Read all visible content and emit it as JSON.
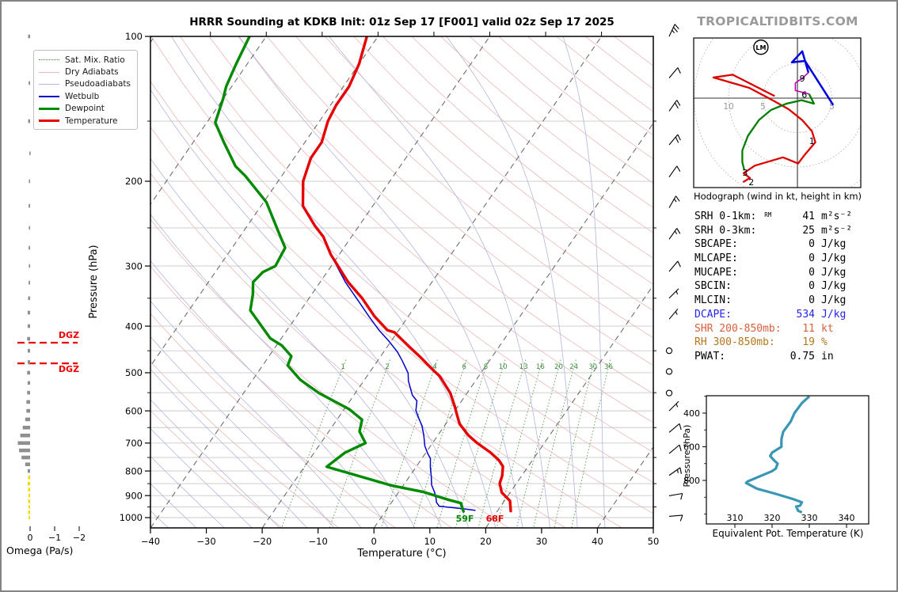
{
  "header": {
    "watermark": "TROPICALTIDBITS.COM"
  },
  "skewt": {
    "title": "HRRR Sounding at KDKB Init: 01z Sep 17 [F001] valid 02z Sep 17 2025",
    "xlabel": "Temperature (°C)",
    "ylabel": "Pressure (hPa)",
    "x_ticks": [
      -40,
      -30,
      -20,
      -10,
      0,
      10,
      20,
      30,
      40,
      50
    ],
    "p_ticks": [
      100,
      200,
      300,
      400,
      500,
      600,
      700,
      800,
      900,
      1000
    ],
    "mix_ratio_labels": [
      1,
      2,
      4,
      6,
      8,
      10,
      13,
      16,
      20,
      24,
      30,
      36
    ],
    "legend": [
      {
        "label": "Sat. Mix. Ratio",
        "swatch": "mixratio"
      },
      {
        "label": "Dry Adiabats",
        "swatch": "dryadiabat"
      },
      {
        "label": "Pseudoadiabats",
        "swatch": "pseudoadiabat"
      },
      {
        "label": "Wetbulb",
        "swatch": "wetbulb"
      },
      {
        "label": "Dewpoint",
        "swatch": "dewpoint"
      },
      {
        "label": "Temperature",
        "swatch": "temperature"
      }
    ],
    "surface": {
      "dewpoint_f": "59F",
      "temperature_f": "68F"
    }
  },
  "omega": {
    "xlabel": "Omega (Pa/s)",
    "ticks": [
      0,
      -1,
      -2
    ],
    "dgz_label": "DGZ"
  },
  "hodograph": {
    "caption": "Hodograph (wind in kt, height in km)",
    "storm_motion": {
      "label": "LM",
      "u": -5.3,
      "v": 7.4
    },
    "ring_interval_kt": 5,
    "ring_axis_labels": [
      {
        "text": "10",
        "u": -10,
        "v": 0
      },
      {
        "text": "5",
        "u": -5,
        "v": 0
      },
      {
        "text": "5",
        "u": 5,
        "v": 0
      }
    ],
    "height_markers": [
      {
        "label": "1",
        "u": 2.1,
        "v": -6.2
      },
      {
        "label": "2",
        "u": -6.7,
        "v": -12.2
      },
      {
        "label": "3",
        "u": -7.6,
        "v": -10.8
      },
      {
        "label": "6",
        "u": 1.0,
        "v": 0.5
      },
      {
        "label": "9",
        "u": 0.7,
        "v": 2.9
      }
    ]
  },
  "stats": {
    "rows": [
      {
        "label": "SRH 0-1km:",
        "tag": "RM",
        "value": "41",
        "unit": "m²s⁻²",
        "color": "#000000"
      },
      {
        "label": "SRH 0-3km:",
        "tag": "",
        "value": "25",
        "unit": "m²s⁻²",
        "color": "#000000"
      },
      {
        "label": "SBCAPE:",
        "tag": "",
        "value": "0",
        "unit": "J/kg",
        "color": "#000000"
      },
      {
        "label": "MLCAPE:",
        "tag": "",
        "value": "0",
        "unit": "J/kg",
        "color": "#000000"
      },
      {
        "label": "MUCAPE:",
        "tag": "",
        "value": "0",
        "unit": "J/kg",
        "color": "#000000"
      },
      {
        "label": "SBCIN:",
        "tag": "",
        "value": "0",
        "unit": "J/kg",
        "color": "#000000"
      },
      {
        "label": "MLCIN:",
        "tag": "",
        "value": "0",
        "unit": "J/kg",
        "color": "#000000"
      },
      {
        "label": "DCAPE:",
        "tag": "",
        "value": "534",
        "unit": "J/kg",
        "color": "#2424e6"
      },
      {
        "label": "SHR 200-850mb:",
        "tag": "",
        "value": "11",
        "unit": "kt",
        "color": "#d9603b"
      },
      {
        "label": "RH 300-850mb:",
        "tag": "",
        "value": "19",
        "unit": "%",
        "color": "#b5761d"
      },
      {
        "label": "PWAT:",
        "tag": "",
        "value": "0.75",
        "unit": "in",
        "color": "#000000"
      }
    ]
  },
  "theta_e": {
    "xlabel": "Equivalent Pot. Temperature (K)",
    "ylabel": "Pressure (hPa)",
    "x_ticks": [
      310,
      320,
      330,
      340
    ],
    "p_ticks": [
      400,
      600,
      800
    ]
  },
  "colors": {
    "temperature": "#e60000",
    "dewpoint": "#008a00",
    "wetbulb": "#0000cc",
    "dry_adiabat": "#e9b8b8",
    "pseudoadiabat": "#b2b6dc",
    "mix_ratio": "#3c8c3c",
    "isotherm": "#4a4a4a",
    "gridline": "#c9c9c9",
    "dgz": "#ee0000",
    "omega_gray": "#8f8f8f",
    "omega_yellow": "#f2dc00",
    "hodo_0_3": "#dd0000",
    "hodo_3_6": "#007f00",
    "hodo_6_9": "#bb00bb",
    "hodo_9_12": "#0000dd",
    "theta_e_line": "#3996b4",
    "ring": "#aaaaaa",
    "watermark": "#9a9a9a"
  },
  "chart_data": {
    "type": "skewt_sounding",
    "layout_hints": {
      "pressure_range_hpa": [
        100,
        1050
      ],
      "temp_range_c": [
        -40,
        50
      ],
      "pressure_scale": "log",
      "skew_deg": 45,
      "grid": "50hPa horizontal",
      "isotherm_step_c": 20,
      "dry_adiabat_step_c": 10,
      "pseudoadiabat_step_c": 5,
      "legend_position": "upper left"
    },
    "temperature_c": [
      [
        100,
        -62
      ],
      [
        114,
        -60
      ],
      [
        127,
        -59
      ],
      [
        139,
        -59
      ],
      [
        150,
        -58.5
      ],
      [
        166,
        -57
      ],
      [
        179,
        -57
      ],
      [
        200,
        -55.5
      ],
      [
        225,
        -52.5
      ],
      [
        247,
        -48
      ],
      [
        261,
        -45
      ],
      [
        284,
        -41.5
      ],
      [
        324,
        -35
      ],
      [
        350,
        -30.5
      ],
      [
        382,
        -26
      ],
      [
        408,
        -22
      ],
      [
        412,
        -20.5
      ],
      [
        442,
        -16
      ],
      [
        466,
        -12.5
      ],
      [
        493,
        -9
      ],
      [
        508,
        -7
      ],
      [
        551,
        -3
      ],
      [
        588,
        -0.5
      ],
      [
        605,
        0.5
      ],
      [
        639,
        2.5
      ],
      [
        675,
        5.5
      ],
      [
        700,
        8
      ],
      [
        732,
        11.5
      ],
      [
        760,
        14
      ],
      [
        783,
        15.5
      ],
      [
        818,
        16.5
      ],
      [
        849,
        17
      ],
      [
        887,
        18.5
      ],
      [
        923,
        21
      ],
      [
        969,
        22.4
      ]
    ],
    "dewpoint_c": [
      [
        100,
        -83
      ],
      [
        114,
        -82
      ],
      [
        127,
        -81
      ],
      [
        135,
        -80
      ],
      [
        151,
        -78.5
      ],
      [
        166,
        -74.5
      ],
      [
        186,
        -69.5
      ],
      [
        195,
        -66.5
      ],
      [
        221,
        -59.5
      ],
      [
        259,
        -53
      ],
      [
        275,
        -50.5
      ],
      [
        300,
        -50
      ],
      [
        309,
        -51.5
      ],
      [
        324,
        -52
      ],
      [
        344,
        -50.5
      ],
      [
        371,
        -49
      ],
      [
        389,
        -46.5
      ],
      [
        424,
        -42
      ],
      [
        439,
        -39
      ],
      [
        462,
        -36
      ],
      [
        483,
        -35.5
      ],
      [
        517,
        -31.5
      ],
      [
        551,
        -26.5
      ],
      [
        596,
        -19
      ],
      [
        626,
        -15.5
      ],
      [
        662,
        -14.5
      ],
      [
        700,
        -12
      ],
      [
        733,
        -14.5
      ],
      [
        784,
        -16
      ],
      [
        858,
        -2
      ],
      [
        885,
        4.5
      ],
      [
        919,
        10
      ],
      [
        933,
        12.5
      ],
      [
        971,
        14
      ]
    ],
    "wetbulb_c": [
      [
        284,
        -41.5
      ],
      [
        324,
        -35.5
      ],
      [
        350,
        -31.5
      ],
      [
        382,
        -27
      ],
      [
        408,
        -23.5
      ],
      [
        429,
        -20.5
      ],
      [
        453,
        -17.5
      ],
      [
        473,
        -15.5
      ],
      [
        501,
        -13
      ],
      [
        520,
        -12
      ],
      [
        557,
        -9.5
      ],
      [
        572,
        -8
      ],
      [
        599,
        -7
      ],
      [
        622,
        -5.5
      ],
      [
        645,
        -4
      ],
      [
        675,
        -2.5
      ],
      [
        710,
        -1
      ],
      [
        737,
        0.5
      ],
      [
        753,
        1.5
      ],
      [
        783,
        2.5
      ],
      [
        824,
        4
      ],
      [
        855,
        5
      ],
      [
        887,
        6.5
      ],
      [
        913,
        7.5
      ],
      [
        929,
        8
      ],
      [
        947,
        9
      ],
      [
        958,
        13.5
      ],
      [
        966,
        16
      ]
    ],
    "dgz_hpa": [
      433,
      478
    ],
    "omega_pa_s": [
      [
        100,
        0.08
      ],
      [
        125,
        0.06
      ],
      [
        150,
        0.08
      ],
      [
        175,
        0.03
      ],
      [
        200,
        0.05
      ],
      [
        225,
        0.06
      ],
      [
        250,
        0.05
      ],
      [
        275,
        0.06
      ],
      [
        300,
        0.05
      ],
      [
        325,
        0.06
      ],
      [
        350,
        0.08
      ],
      [
        375,
        0.1
      ],
      [
        400,
        0.1
      ],
      [
        425,
        0.12
      ],
      [
        450,
        0.1
      ],
      [
        475,
        0.1
      ],
      [
        500,
        0.12
      ],
      [
        525,
        0.1
      ],
      [
        550,
        0.12
      ],
      [
        575,
        0.15
      ],
      [
        600,
        0.15
      ],
      [
        625,
        0.2
      ],
      [
        650,
        0.3
      ],
      [
        675,
        0.4
      ],
      [
        700,
        0.5
      ],
      [
        725,
        0.45
      ],
      [
        750,
        0.35
      ],
      [
        775,
        0.2
      ],
      [
        800,
        0.1
      ],
      [
        825,
        0.08
      ],
      [
        850,
        0.1
      ],
      [
        875,
        0.08
      ],
      [
        900,
        0.06
      ],
      [
        925,
        0.08
      ],
      [
        950,
        0.06
      ],
      [
        975,
        0.08
      ],
      [
        1000,
        0.06
      ]
    ],
    "omega_yellow_below_hpa": 805,
    "winds": [
      {
        "p": 100,
        "dir": 25,
        "spd": 25
      },
      {
        "p": 122,
        "dir": 40,
        "spd": 10
      },
      {
        "p": 143,
        "dir": 35,
        "spd": 20
      },
      {
        "p": 168,
        "dir": 40,
        "spd": 20
      },
      {
        "p": 196,
        "dir": 35,
        "spd": 10
      },
      {
        "p": 227,
        "dir": 30,
        "spd": 15
      },
      {
        "p": 264,
        "dir": 35,
        "spd": 15
      },
      {
        "p": 308,
        "dir": 40,
        "spd": 10
      },
      {
        "p": 350,
        "dir": 45,
        "spd": 5
      },
      {
        "p": 387,
        "dir": 40,
        "spd": 5
      },
      {
        "p": 450,
        "dir": 0,
        "spd": 0
      },
      {
        "p": 497,
        "dir": 0,
        "spd": 0
      },
      {
        "p": 551,
        "dir": 0,
        "spd": 0
      },
      {
        "p": 600,
        "dir": 45,
        "spd": 5
      },
      {
        "p": 665,
        "dir": 50,
        "spd": 10
      },
      {
        "p": 736,
        "dir": 50,
        "spd": 10
      },
      {
        "p": 817,
        "dir": 55,
        "spd": 15
      },
      {
        "p": 901,
        "dir": 80,
        "spd": 10
      },
      {
        "p": 994,
        "dir": 85,
        "spd": 10
      }
    ],
    "hodograph_kt": {
      "seg_0_3km": [
        [
          -7.9,
          -12.2
        ],
        [
          -6.9,
          -11.6
        ],
        [
          -7.8,
          -10.9
        ],
        [
          -6.2,
          -9.8
        ],
        [
          -2.1,
          -8.6
        ],
        [
          0.1,
          -9.5
        ],
        [
          1.0,
          -8.3
        ],
        [
          2.6,
          -6.4
        ],
        [
          2.1,
          -4.8
        ],
        [
          0.7,
          -3.2
        ],
        [
          -1.3,
          -1.6
        ],
        [
          -3.8,
          -0.2
        ],
        [
          -7.0,
          1.5
        ],
        [
          -12.2,
          3.0
        ],
        [
          -9.4,
          3.4
        ],
        [
          -3.3,
          0.3
        ]
      ],
      "seg_3_6km": [
        [
          -7.7,
          -10.5
        ],
        [
          -8.0,
          -9.3
        ],
        [
          -8.0,
          -7.6
        ],
        [
          -7.2,
          -5.5
        ],
        [
          -5.6,
          -3.2
        ],
        [
          -3.8,
          -1.7
        ],
        [
          -1.6,
          -0.8
        ],
        [
          0.6,
          -0.3
        ],
        [
          2.4,
          -0.8
        ],
        [
          1.7,
          0.6
        ]
      ],
      "seg_6_9km": [
        [
          1.7,
          0.6
        ],
        [
          -0.3,
          1.1
        ],
        [
          -0.3,
          2.2
        ],
        [
          0.7,
          2.9
        ],
        [
          1.6,
          3.7
        ]
      ],
      "seg_9_12km": [
        [
          1.6,
          3.7
        ],
        [
          0.7,
          6.8
        ],
        [
          -0.8,
          5.2
        ],
        [
          1.1,
          5.4
        ],
        [
          5.2,
          -1.0
        ]
      ]
    },
    "theta_e_k": [
      [
        300,
        330
      ],
      [
        340,
        328
      ],
      [
        400,
        326
      ],
      [
        450,
        325
      ],
      [
        510,
        323
      ],
      [
        555,
        322.5
      ],
      [
        600,
        322.5
      ],
      [
        635,
        320
      ],
      [
        655,
        319.5
      ],
      [
        680,
        320.5
      ],
      [
        700,
        321.5
      ],
      [
        730,
        321
      ],
      [
        745,
        320
      ],
      [
        805,
        313.5
      ],
      [
        815,
        313
      ],
      [
        850,
        316
      ],
      [
        880,
        321
      ],
      [
        910,
        325.5
      ],
      [
        930,
        328
      ],
      [
        950,
        327.5
      ],
      [
        955,
        326.5
      ],
      [
        980,
        327
      ],
      [
        990,
        328
      ]
    ]
  }
}
